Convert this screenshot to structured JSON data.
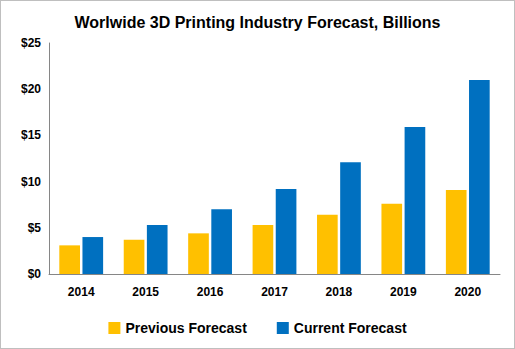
{
  "chart_data": {
    "type": "bar",
    "title": "Worlwide 3D Printing Industry Forecast, Billions",
    "categories": [
      "2014",
      "2015",
      "2016",
      "2017",
      "2018",
      "2019",
      "2020"
    ],
    "series": [
      {
        "name": "Previous Forecast",
        "color": "#ffc000",
        "values": [
          3.1,
          3.7,
          4.4,
          5.3,
          6.4,
          7.6,
          9.1
        ]
      },
      {
        "name": "Current Forecast",
        "color": "#0070c0",
        "values": [
          4.0,
          5.3,
          7.0,
          9.2,
          12.1,
          15.9,
          21.0
        ]
      }
    ],
    "ylim": [
      0,
      25
    ],
    "yticks": [
      {
        "value": 0,
        "label": "$0"
      },
      {
        "value": 5,
        "label": "$5"
      },
      {
        "value": 10,
        "label": "$10"
      },
      {
        "value": 15,
        "label": "$15"
      },
      {
        "value": 20,
        "label": "$20"
      },
      {
        "value": 25,
        "label": "$25"
      }
    ],
    "grid": false,
    "legend": "bottom"
  }
}
